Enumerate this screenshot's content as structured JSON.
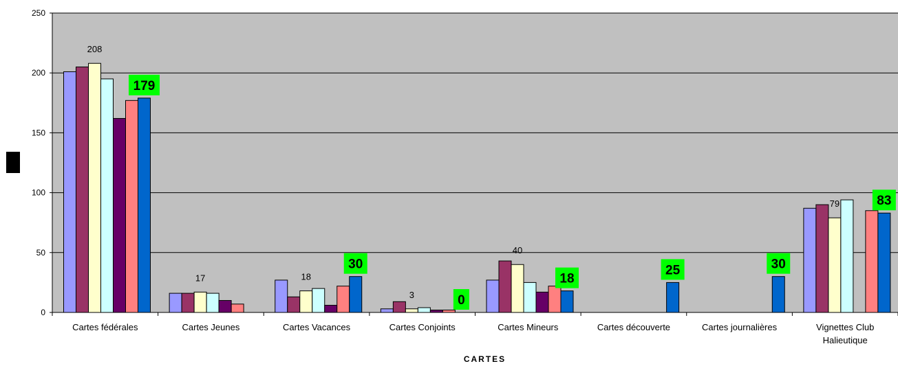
{
  "chart_data": {
    "type": "bar",
    "title": "",
    "xlabel": "CARTES",
    "ylabel": "",
    "ylim": [
      0,
      250
    ],
    "yticks": [
      "0",
      "50",
      "100",
      "150",
      "200",
      "250"
    ],
    "grid": true,
    "legend": "none",
    "categories": [
      "Cartes fédérales",
      "Cartes Jeunes",
      "Cartes Vacances",
      "Cartes Conjoints",
      "Cartes Mineurs",
      "Cartes découverte",
      "Cartes journalières",
      [
        "Vignettes Club",
        "Halieutique"
      ]
    ],
    "series": [
      {
        "color": "#9999ff",
        "values": [
          201,
          16,
          27,
          3,
          27,
          null,
          null,
          87
        ]
      },
      {
        "color": "#993366",
        "values": [
          205,
          16,
          13,
          9,
          43,
          null,
          null,
          90
        ]
      },
      {
        "color": "#ffffcc",
        "values": [
          208,
          17,
          18,
          3,
          40,
          null,
          null,
          79
        ]
      },
      {
        "color": "#ccffff",
        "values": [
          195,
          16,
          20,
          4,
          25,
          null,
          null,
          94
        ]
      },
      {
        "color": "#660066",
        "values": [
          162,
          10,
          6,
          2,
          17,
          null,
          null,
          null
        ]
      },
      {
        "color": "#ff8080",
        "values": [
          177,
          7,
          22,
          2,
          22,
          null,
          null,
          85
        ]
      },
      {
        "color": "#0066cc",
        "values": [
          179,
          null,
          30,
          0,
          18,
          25,
          30,
          83
        ]
      }
    ],
    "data_labels": [
      {
        "category": 0,
        "series": 2,
        "text": "208"
      },
      {
        "category": 1,
        "series": 2,
        "text": "17"
      },
      {
        "category": 2,
        "series": 2,
        "text": "18"
      },
      {
        "category": 3,
        "series": 2,
        "text": "3"
      },
      {
        "category": 4,
        "series": 2,
        "text": "40"
      },
      {
        "category": 7,
        "series": 2,
        "text": "79"
      }
    ],
    "highlight_labels": [
      {
        "category": 0,
        "series": 6,
        "text": "179"
      },
      {
        "category": 2,
        "series": 6,
        "text": "30"
      },
      {
        "category": 3,
        "series": 6,
        "text": "0"
      },
      {
        "category": 4,
        "series": 6,
        "text": "18"
      },
      {
        "category": 5,
        "series": 6,
        "text": "25"
      },
      {
        "category": 6,
        "series": 6,
        "text": "30"
      },
      {
        "category": 7,
        "series": 6,
        "text": "83"
      }
    ],
    "highlight_color": "#00ff00",
    "plot_background": "#c0c0c0"
  }
}
